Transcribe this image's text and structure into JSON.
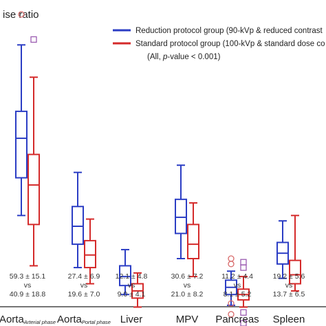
{
  "chart_data": {
    "type": "boxplot",
    "title": "ise ratio",
    "ylim": [
      0,
      90
    ],
    "grid": false,
    "legend_placement": "top-right",
    "categories": [
      {
        "main": "Aorta",
        "sub": "Arterial phase"
      },
      {
        "main": "Aorta",
        "sub": "Portal phase"
      },
      {
        "main": "Liver",
        "sub": ""
      },
      {
        "main": "MPV",
        "sub": ""
      },
      {
        "main": "Pancreas",
        "sub": ""
      },
      {
        "main": "Spleen",
        "sub": ""
      }
    ],
    "legend": {
      "entries": [
        {
          "label": "Reduction protocol group (90-kVp & reduced contrast",
          "color": "#2b3dc4"
        },
        {
          "label": "Standard protocol group (100-kVp & standard dose co",
          "color": "#d42a2a"
        }
      ],
      "note_prefix": "(All, ",
      "note_italic": "p",
      "note_suffix": "-value < 0.001)"
    },
    "series": [
      {
        "color": "#2b3dc4",
        "boxes": [
          {
            "whislo": 30,
            "q1": 40.5,
            "med": 51.5,
            "q3": 59,
            "whishi": 77.5,
            "outliers": [
              {
                "v": 86,
                "marker": "circle"
              },
              {
                "v": 93,
                "marker": "circle"
              }
            ]
          },
          {
            "whislo": 15.5,
            "q1": 22,
            "med": 27,
            "q3": 32.5,
            "whishi": 42,
            "outliers": []
          },
          {
            "whislo": 8,
            "q1": 10.5,
            "med": 13,
            "q3": 16,
            "whishi": 20.5,
            "outliers": []
          },
          {
            "whislo": 18,
            "q1": 25,
            "med": 29.5,
            "q3": 34.5,
            "whishi": 44,
            "outliers": []
          },
          {
            "whislo": 5,
            "q1": 8,
            "med": 10,
            "q3": 12,
            "whishi": 14.5,
            "outliers": [
              {
                "v": 2.5,
                "marker": "circle"
              },
              {
                "v": 5.5,
                "marker": "circle"
              },
              {
                "v": 16.5,
                "marker": "circle"
              },
              {
                "v": 18,
                "marker": "circle"
              }
            ]
          },
          {
            "whislo": 12.5,
            "q1": 16.5,
            "med": 19.5,
            "q3": 22.5,
            "whishi": 28.5,
            "outliers": []
          }
        ]
      },
      {
        "color": "#d42a2a",
        "boxes": [
          {
            "whislo": 16,
            "q1": 27.5,
            "med": 38.5,
            "q3": 47,
            "whishi": 68.5,
            "outliers": [
              {
                "v": 79,
                "marker": "square"
              }
            ]
          },
          {
            "whislo": 11,
            "q1": 15.5,
            "med": 19,
            "q3": 23,
            "whishi": 29,
            "outliers": []
          },
          {
            "whislo": 4.5,
            "q1": 7,
            "med": 9,
            "q3": 11,
            "whishi": 14,
            "outliers": []
          },
          {
            "whislo": 13,
            "q1": 18,
            "med": 22,
            "q3": 27.5,
            "whishi": 33.5,
            "outliers": []
          },
          {
            "whislo": 4.5,
            "q1": 6.5,
            "med": 8,
            "q3": 9.5,
            "whishi": 13,
            "outliers": [
              {
                "v": 0,
                "marker": "square"
              },
              {
                "v": 3,
                "marker": "square"
              },
              {
                "v": 15.5,
                "marker": "square"
              },
              {
                "v": 17,
                "marker": "square"
              }
            ]
          },
          {
            "whislo": 9,
            "q1": 11,
            "med": 13.5,
            "q3": 17.5,
            "whishi": 30,
            "outliers": []
          }
        ]
      }
    ],
    "stats": [
      {
        "reduction": "59.3 ± 15.1",
        "vs": "vs",
        "standard": "40.9 ± 18.8"
      },
      {
        "reduction": "27.4 ± 6.9",
        "vs": "vs",
        "standard": "19.6 ± 7.0"
      },
      {
        "reduction": "12.1 ± 4.8",
        "vs": "vs",
        "standard": "9.0 ± 4.1"
      },
      {
        "reduction": "30.6 ± 7.2",
        "vs": "vs",
        "standard": "21.0 ± 8.2"
      },
      {
        "reduction": "11.2 ± 4.4",
        "vs": "vs",
        "standard": "8.1 ± 5.2"
      },
      {
        "reduction": "19.2 ± 5.6",
        "vs": "vs",
        "standard": "13.7 ± 6.5"
      }
    ]
  }
}
